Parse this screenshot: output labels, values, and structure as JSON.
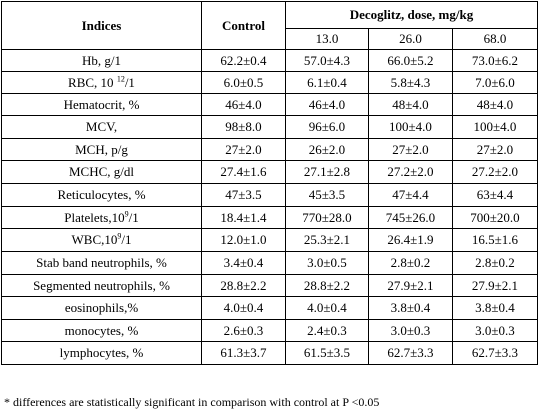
{
  "table": {
    "header": {
      "indices": "Indices",
      "control": "Control",
      "dose_group": "Decoglitz, dose, mg/kg",
      "doses": [
        "13.0",
        "26.0",
        "68.0"
      ]
    },
    "rows": [
      {
        "label": "Hb, g/1",
        "sup_pre": "",
        "sup": "",
        "sup_post": "",
        "values": [
          "62.2±0.4",
          "57.0±4.3",
          "66.0±5.2",
          "73.0±6.2"
        ]
      },
      {
        "label": "RBC, 10 ",
        "sup": "12",
        "sup_post": "/1",
        "values": [
          "6.0±0.5",
          "6.1±0.4",
          "5.8±4.3",
          "7.0±6.0"
        ]
      },
      {
        "label": "Hematocrit, %",
        "sup": "",
        "sup_post": "",
        "values": [
          "46±4.0",
          "46±4.0",
          "48±4.0",
          "48±4.0"
        ]
      },
      {
        "label": "MCV,",
        "sup": "",
        "sup_post": "",
        "values": [
          "98±8.0",
          "96±6.0",
          "100±4.0",
          "100±4.0"
        ]
      },
      {
        "label": "MCH, p/g",
        "sup": "",
        "sup_post": "",
        "values": [
          "27±2.0",
          "26±2.0",
          "27±2.0",
          "27±2.0"
        ]
      },
      {
        "label": "MCHC, g/dl",
        "sup": "",
        "sup_post": "",
        "values": [
          "27.4±1.6",
          "27.1±2.8",
          "27.2±2.0",
          "27.2±2.0"
        ]
      },
      {
        "label": "Reticulocytes, %",
        "sup": "",
        "sup_post": "",
        "values": [
          "47±3.5",
          "45±3.5",
          "47±4.4",
          "63±4.4"
        ]
      },
      {
        "label": "Platelets,10",
        "sup": "9",
        "sup_post": "/1",
        "values": [
          "18.4±1.4",
          "770±28.0",
          "745±26.0",
          "700±20.0"
        ]
      },
      {
        "label": "WBC,10",
        "sup": "9",
        "sup_post": "/1",
        "values": [
          "12.0±1.0",
          "25.3±2.1",
          "26.4±1.9",
          "16.5±1.6"
        ]
      },
      {
        "label": "Stab band neutrophils, %",
        "sup": "",
        "sup_post": "",
        "values": [
          "3.4±0.4",
          "3.0±0.5",
          "2.8±0.2",
          "2.8±0.2"
        ]
      },
      {
        "label": "Segmented neutrophils, %",
        "sup": "",
        "sup_post": "",
        "values": [
          "28.8±2.2",
          "28.8±2.2",
          "27.9±2.1",
          "27.9±2.1"
        ]
      },
      {
        "label": "eosinophils,%",
        "sup": "",
        "sup_post": "",
        "values": [
          "4.0±0.4",
          "4.0±0.4",
          "3.8±0.4",
          "3.8±0.4"
        ]
      },
      {
        "label": "monocytes, %",
        "sup": "",
        "sup_post": "",
        "values": [
          "2.6±0.3",
          "2.4±0.3",
          "3.0±0.3",
          "3.0±0.3"
        ]
      },
      {
        "label": "lymphocytes, %",
        "sup": "",
        "sup_post": "",
        "values": [
          "61.3±3.7",
          "61.5±3.5",
          "62.7±3.3",
          "62.7±3.3"
        ]
      }
    ]
  },
  "footnote": "* differences are statistically significant in comparison with control at P <0.05"
}
